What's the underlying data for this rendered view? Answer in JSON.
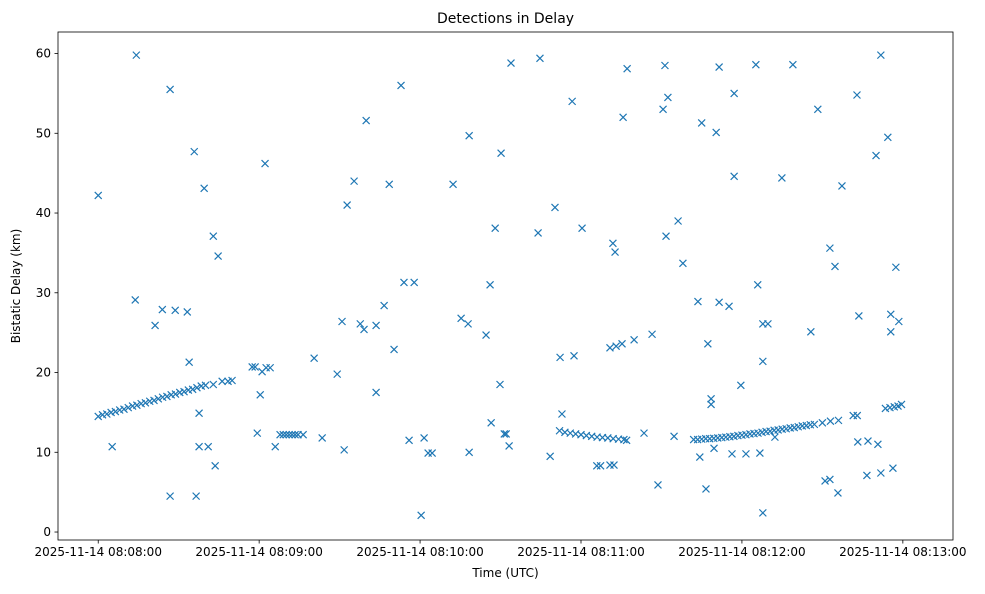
{
  "chart_data": {
    "type": "scatter",
    "title": "Detections in Delay",
    "xlabel": "Time (UTC)",
    "ylabel": "Bistatic Delay (km)",
    "xlim": [
      -15,
      318.7
    ],
    "ylim": [
      -1.0,
      62.7
    ],
    "xticks": [
      0,
      60,
      120,
      180,
      240,
      300
    ],
    "xtick_labels": [
      "2025-11-14 08:08:00",
      "2025-11-14 08:09:00",
      "2025-11-14 08:10:00",
      "2025-11-14 08:11:00",
      "2025-11-14 08:12:00",
      "2025-11-14 08:13:00"
    ],
    "yticks": [
      0,
      10,
      20,
      30,
      40,
      50,
      60
    ],
    "ytick_labels": [
      "0",
      "10",
      "20",
      "30",
      "40",
      "50",
      "60"
    ],
    "marker": "x",
    "color": "#1f77b4",
    "grid": false,
    "points": [
      [
        0,
        42.2
      ],
      [
        14.2,
        59.8
      ],
      [
        13.8,
        29.1
      ],
      [
        5.2,
        10.7
      ],
      [
        26.8,
        55.5
      ],
      [
        26.8,
        4.5
      ],
      [
        21.2,
        25.9
      ],
      [
        23.9,
        27.9
      ],
      [
        28.7,
        27.8
      ],
      [
        33.2,
        27.6
      ],
      [
        33.9,
        21.3
      ],
      [
        35.8,
        47.7
      ],
      [
        36.5,
        4.5
      ],
      [
        37.6,
        14.9
      ],
      [
        39.5,
        43.1
      ],
      [
        37.6,
        10.7
      ],
      [
        41.0,
        10.7
      ],
      [
        42.9,
        37.1
      ],
      [
        44.7,
        34.6
      ],
      [
        43.6,
        8.3
      ],
      [
        42.9,
        18.5
      ],
      [
        46.2,
        18.9
      ],
      [
        48.4,
        18.9
      ],
      [
        49.9,
        19.0
      ],
      [
        0,
        14.5
      ],
      [
        1.6,
        14.7
      ],
      [
        3.2,
        14.8
      ],
      [
        4.8,
        15.0
      ],
      [
        6.4,
        15.1
      ],
      [
        8,
        15.3
      ],
      [
        9.6,
        15.4
      ],
      [
        11.2,
        15.6
      ],
      [
        12.8,
        15.8
      ],
      [
        14.4,
        15.9
      ],
      [
        16,
        16.1
      ],
      [
        17.6,
        16.2
      ],
      [
        19.2,
        16.4
      ],
      [
        20.8,
        16.5
      ],
      [
        22.4,
        16.7
      ],
      [
        24,
        16.9
      ],
      [
        25.6,
        17.0
      ],
      [
        27.2,
        17.2
      ],
      [
        28.8,
        17.3
      ],
      [
        30.4,
        17.5
      ],
      [
        32,
        17.6
      ],
      [
        33.6,
        17.8
      ],
      [
        35.2,
        17.9
      ],
      [
        36.8,
        18.1
      ],
      [
        38.4,
        18.3
      ],
      [
        40,
        18.4
      ],
      [
        57.4,
        20.7
      ],
      [
        58.5,
        20.7
      ],
      [
        59.3,
        12.4
      ],
      [
        60.4,
        17.2
      ],
      [
        61.1,
        20.1
      ],
      [
        62.2,
        46.2
      ],
      [
        62.6,
        20.6
      ],
      [
        64.1,
        20.6
      ],
      [
        66.0,
        10.7
      ],
      [
        67.8,
        12.2
      ],
      [
        69.0,
        12.2
      ],
      [
        70.1,
        12.2
      ],
      [
        71.2,
        12.2
      ],
      [
        72.3,
        12.2
      ],
      [
        73.4,
        12.2
      ],
      [
        74.5,
        12.2
      ],
      [
        76.4,
        12.2
      ],
      [
        80.5,
        21.8
      ],
      [
        83.5,
        11.8
      ],
      [
        89.1,
        19.8
      ],
      [
        90.9,
        26.4
      ],
      [
        91.7,
        10.3
      ],
      [
        92.8,
        41.0
      ],
      [
        95.4,
        44.0
      ],
      [
        97.7,
        26.1
      ],
      [
        99.1,
        25.4
      ],
      [
        99.9,
        51.6
      ],
      [
        103.6,
        25.9
      ],
      [
        103.6,
        17.5
      ],
      [
        106.6,
        28.4
      ],
      [
        108.5,
        43.6
      ],
      [
        110.3,
        22.9
      ],
      [
        112.9,
        56.0
      ],
      [
        114.0,
        31.3
      ],
      [
        117.8,
        31.3
      ],
      [
        115.9,
        11.5
      ],
      [
        120.4,
        2.1
      ],
      [
        121.5,
        11.8
      ],
      [
        123.0,
        9.9
      ],
      [
        124.5,
        9.9
      ],
      [
        132.3,
        43.6
      ],
      [
        135.3,
        26.8
      ],
      [
        137.9,
        26.1
      ],
      [
        138.3,
        49.7
      ],
      [
        138.3,
        10.0
      ],
      [
        144.6,
        24.7
      ],
      [
        146.1,
        31.0
      ],
      [
        146.5,
        13.7
      ],
      [
        148.0,
        38.1
      ],
      [
        149.8,
        18.5
      ],
      [
        150.2,
        47.5
      ],
      [
        151.4,
        12.3
      ],
      [
        152.1,
        12.3
      ],
      [
        153.2,
        10.8
      ],
      [
        153.9,
        58.8
      ],
      [
        164.0,
        37.5
      ],
      [
        164.7,
        59.4
      ],
      [
        168.5,
        9.5
      ],
      [
        170.3,
        40.7
      ],
      [
        172.2,
        21.9
      ],
      [
        172.9,
        14.8
      ],
      [
        176.7,
        54.0
      ],
      [
        177.4,
        22.1
      ],
      [
        180.4,
        38.1
      ],
      [
        172,
        12.7
      ],
      [
        174,
        12.5
      ],
      [
        176,
        12.4
      ],
      [
        178,
        12.3
      ],
      [
        180,
        12.2
      ],
      [
        182,
        12.1
      ],
      [
        184,
        12.0
      ],
      [
        186,
        11.9
      ],
      [
        188,
        11.85
      ],
      [
        190,
        11.8
      ],
      [
        192,
        11.7
      ],
      [
        194,
        11.65
      ],
      [
        196,
        11.6
      ],
      [
        197,
        11.5
      ],
      [
        185.9,
        8.3
      ],
      [
        187.3,
        8.3
      ],
      [
        190.8,
        8.4
      ],
      [
        192.3,
        8.4
      ],
      [
        191.9,
        36.2
      ],
      [
        192.7,
        35.1
      ],
      [
        190.8,
        23.1
      ],
      [
        193.1,
        23.3
      ],
      [
        195.3,
        23.6
      ],
      [
        195.7,
        52.0
      ],
      [
        197.2,
        58.1
      ],
      [
        199.8,
        24.1
      ],
      [
        203.5,
        12.4
      ],
      [
        206.5,
        24.8
      ],
      [
        208.7,
        5.9
      ],
      [
        210.6,
        53.0
      ],
      [
        211.3,
        58.5
      ],
      [
        211.7,
        37.1
      ],
      [
        212.4,
        54.5
      ],
      [
        214.7,
        12.0
      ],
      [
        216.2,
        39.0
      ],
      [
        218.0,
        33.7
      ],
      [
        223.6,
        28.9
      ],
      [
        224.3,
        9.4
      ],
      [
        225.0,
        51.3
      ],
      [
        226.6,
        5.4
      ],
      [
        227.3,
        23.6
      ],
      [
        228.5,
        16.7
      ],
      [
        228.5,
        16.0
      ],
      [
        229.6,
        10.5
      ],
      [
        230.4,
        50.1
      ],
      [
        231.5,
        58.3
      ],
      [
        231.5,
        28.8
      ],
      [
        235.2,
        28.3
      ],
      [
        237.1,
        55.0
      ],
      [
        237.1,
        44.6
      ],
      [
        236.3,
        9.8
      ],
      [
        239.6,
        18.4
      ],
      [
        241.5,
        9.8
      ],
      [
        245.2,
        58.6
      ],
      [
        245.9,
        31.0
      ],
      [
        246.7,
        9.9
      ],
      [
        247.8,
        2.4
      ],
      [
        247.8,
        21.4
      ],
      [
        247.8,
        26.1
      ],
      [
        249.7,
        26.1
      ],
      [
        252.3,
        11.9
      ],
      [
        254.9,
        44.4
      ],
      [
        259.0,
        58.6
      ],
      [
        265.7,
        25.1
      ],
      [
        268.3,
        53.0
      ],
      [
        222,
        11.6
      ],
      [
        223.5,
        11.6
      ],
      [
        225,
        11.65
      ],
      [
        226.5,
        11.7
      ],
      [
        228,
        11.7
      ],
      [
        229.5,
        11.75
      ],
      [
        231,
        11.8
      ],
      [
        232.5,
        11.85
      ],
      [
        234,
        11.9
      ],
      [
        235.5,
        11.95
      ],
      [
        237,
        12.0
      ],
      [
        238.5,
        12.1
      ],
      [
        240,
        12.15
      ],
      [
        241.5,
        12.2
      ],
      [
        243,
        12.3
      ],
      [
        244.5,
        12.35
      ],
      [
        246,
        12.4
      ],
      [
        247.5,
        12.5
      ],
      [
        249,
        12.6
      ],
      [
        250.5,
        12.65
      ],
      [
        252,
        12.75
      ],
      [
        253.5,
        12.8
      ],
      [
        255,
        12.9
      ],
      [
        256.5,
        12.95
      ],
      [
        258,
        13.05
      ],
      [
        259.5,
        13.1
      ],
      [
        261,
        13.2
      ],
      [
        262.5,
        13.3
      ],
      [
        264,
        13.35
      ],
      [
        265.5,
        13.45
      ],
      [
        267,
        13.5
      ],
      [
        270,
        13.7
      ],
      [
        273,
        13.9
      ],
      [
        276,
        14.0
      ],
      [
        281.5,
        14.6
      ],
      [
        283,
        14.6
      ],
      [
        271.0,
        6.4
      ],
      [
        272.8,
        6.6
      ],
      [
        272.8,
        35.6
      ],
      [
        274.7,
        33.3
      ],
      [
        275.8,
        4.9
      ],
      [
        277.3,
        43.4
      ],
      [
        282.9,
        54.8
      ],
      [
        283.6,
        27.1
      ],
      [
        283.2,
        11.3
      ],
      [
        286.6,
        7.1
      ],
      [
        287.0,
        11.4
      ],
      [
        290.0,
        47.2
      ],
      [
        290.7,
        11.0
      ],
      [
        291.8,
        59.8
      ],
      [
        291.8,
        7.4
      ],
      [
        294.4,
        49.5
      ],
      [
        295.5,
        27.3
      ],
      [
        295.5,
        25.1
      ],
      [
        296.3,
        8.0
      ],
      [
        297.4,
        33.2
      ],
      [
        298.5,
        26.4
      ],
      [
        293.5,
        15.5
      ],
      [
        295.2,
        15.6
      ],
      [
        296.8,
        15.7
      ],
      [
        298.2,
        15.8
      ],
      [
        299.5,
        16.0
      ]
    ]
  }
}
